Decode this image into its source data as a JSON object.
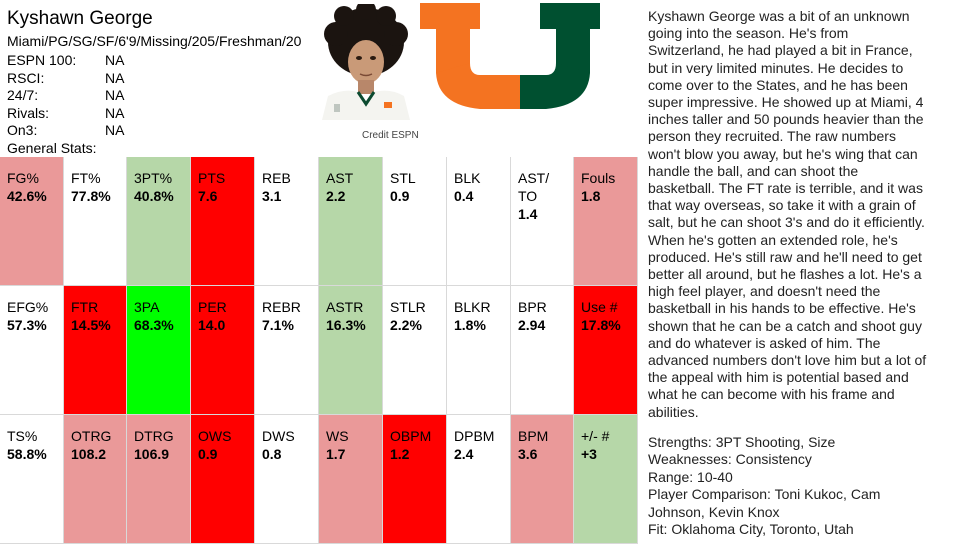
{
  "player": {
    "name": "Kyshawn George",
    "info": "Miami/PG/SG/SF/6'9/Missing/205/Freshman/20"
  },
  "rankings": [
    {
      "label": "ESPN 100:",
      "value": "NA"
    },
    {
      "label": "RSCI:",
      "value": "NA"
    },
    {
      "label": "24/7:",
      "value": "NA"
    },
    {
      "label": "Rivals:",
      "value": "NA"
    },
    {
      "label": "On3:",
      "value": "NA"
    }
  ],
  "general_stats_label": "General Stats:",
  "photo_credit": "Credit ESPN",
  "colors": {
    "white": "#ffffff",
    "pink": "#ea9999",
    "red": "#ff0000",
    "light_green": "#b6d7a8",
    "green": "#00ff00",
    "logo_orange": "#f47321",
    "logo_green": "#005030"
  },
  "stats_rows": [
    [
      {
        "label": "FG%",
        "value": "42.6%",
        "color": "pink"
      },
      {
        "label": "FT%",
        "value": "77.8%",
        "color": "white"
      },
      {
        "label": "3PT%",
        "value": "40.8%",
        "color": "light_green"
      },
      {
        "label": "PTS",
        "value": "7.6",
        "color": "red"
      },
      {
        "label": "REB",
        "value": "3.1",
        "color": "white"
      },
      {
        "label": "AST",
        "value": "2.2",
        "color": "light_green"
      },
      {
        "label": "STL",
        "value": "0.9",
        "color": "white"
      },
      {
        "label": "BLK",
        "value": "0.4",
        "color": "white"
      },
      {
        "label": "AST/TO",
        "value": "1.4",
        "color": "white"
      },
      {
        "label": "Fouls",
        "value": "1.8",
        "color": "pink"
      }
    ],
    [
      {
        "label": "EFG%",
        "value": "57.3%",
        "color": "white"
      },
      {
        "label": "FTR",
        "value": "14.5%",
        "color": "red"
      },
      {
        "label": "3PA",
        "value": "68.3%",
        "color": "green"
      },
      {
        "label": "PER",
        "value": "14.0",
        "color": "red"
      },
      {
        "label": "REBR",
        "value": "7.1%",
        "color": "white"
      },
      {
        "label": "ASTR",
        "value": "16.3%",
        "color": "light_green"
      },
      {
        "label": "STLR",
        "value": "2.2%",
        "color": "white"
      },
      {
        "label": "BLKR",
        "value": "1.8%",
        "color": "white"
      },
      {
        "label": "BPR",
        "value": "2.94",
        "color": "white"
      },
      {
        "label": "Use #",
        "value": "17.8%",
        "color": "red"
      }
    ],
    [
      {
        "label": "TS%",
        "value": "58.8%",
        "color": "white"
      },
      {
        "label": "OTRG",
        "value": "108.2",
        "color": "pink"
      },
      {
        "label": "DTRG",
        "value": "106.9",
        "color": "pink"
      },
      {
        "label": "OWS",
        "value": "0.9",
        "color": "red"
      },
      {
        "label": "DWS",
        "value": "0.8",
        "color": "white"
      },
      {
        "label": "WS",
        "value": "1.7",
        "color": "pink"
      },
      {
        "label": "OBPM",
        "value": "1.2",
        "color": "red"
      },
      {
        "label": "DPBM",
        "value": "2.4",
        "color": "white"
      },
      {
        "label": "BPM",
        "value": "3.6",
        "color": "pink"
      },
      {
        "label": "+/- #",
        "value": "+3",
        "color": "light_green"
      }
    ]
  ],
  "description": "Kyshawn George was a bit of an unknown going into the season. He's from Switzerland, he had played a bit in France, but in very limited minutes. He decides to come over to the States, and he has been super impressive. He showed up at Miami, 4 inches taller and 50 pounds heavier than the person they recruited. The raw numbers won't blow you away, but he's wing that can handle the ball, and can shoot the basketball. The FT rate is terrible, and it was that way overseas, so take it with a grain of salt, but he can shoot 3's and do it efficiently. When he's gotten an extended role, he's produced. He's still raw and he'll need to get better all around, but he flashes a lot. He's a high feel player, and doesn't need the basketball in his hands to be effective. He's shown that he can be a catch and shoot guy and do whatever is asked of him. The advanced numbers don't love him but a lot of the appeal with him is potential based and what he can become with his frame and abilities.",
  "summary": {
    "strengths": "Strengths: 3PT Shooting, Size",
    "weaknesses": "Weaknesses: Consistency",
    "range": "Range: 10-40",
    "comparison": "Player Comparison: Toni Kukoc, Cam Johnson, Kevin Knox",
    "fit": "Fit: Oklahoma City, Toronto, Utah"
  }
}
